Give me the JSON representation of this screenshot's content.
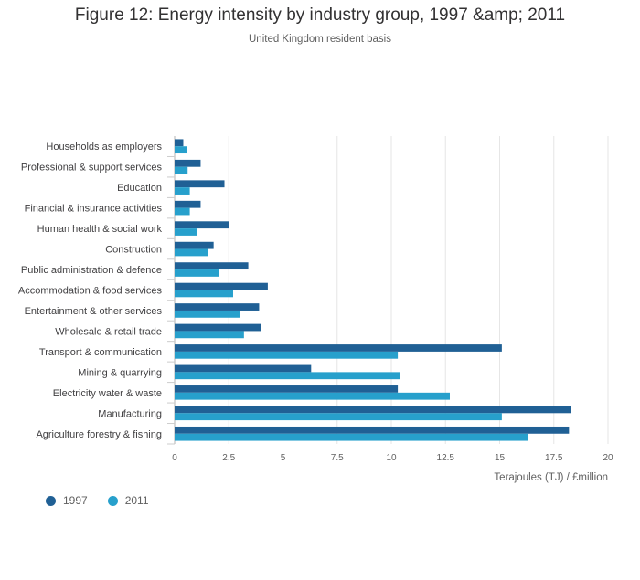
{
  "chart_data": {
    "type": "bar",
    "orientation": "horizontal",
    "title": "Figure 12: Energy intensity by industry group, 1997 &amp; 2011",
    "subtitle": "United Kingdom resident basis",
    "xlabel": "Terajoules (TJ) / £million",
    "ylabel": "",
    "xlim": [
      0,
      20
    ],
    "xticks": [
      0,
      2.5,
      5,
      7.5,
      10,
      12.5,
      15,
      17.5,
      20
    ],
    "xtick_labels": [
      "0",
      "2.5",
      "5",
      "7.5",
      "10",
      "12.5",
      "15",
      "17.5",
      "20"
    ],
    "grid": true,
    "legend_position": "bottom-left",
    "categories": [
      "Households as employers",
      "Professional & support services",
      "Education",
      "Financial & insurance activities",
      "Human health & social work",
      "Construction",
      "Public administration & defence",
      "Accommodation & food services",
      "Entertainment & other services",
      "Wholesale & retail trade",
      "Transport & communication",
      "Mining & quarrying",
      "Electricity water & waste",
      "Manufacturing",
      "Agriculture forestry & fishing"
    ],
    "series": [
      {
        "name": "1997",
        "color": "#206095",
        "values": [
          0.4,
          1.2,
          2.3,
          1.2,
          2.5,
          1.8,
          3.4,
          4.3,
          3.9,
          4.0,
          15.1,
          6.3,
          10.3,
          18.3,
          18.2
        ]
      },
      {
        "name": "2011",
        "color": "#27a0cc",
        "values": [
          0.55,
          0.6,
          0.7,
          0.7,
          1.05,
          1.55,
          2.05,
          2.7,
          3.0,
          3.2,
          10.3,
          10.4,
          12.7,
          15.1,
          16.3
        ]
      }
    ]
  }
}
